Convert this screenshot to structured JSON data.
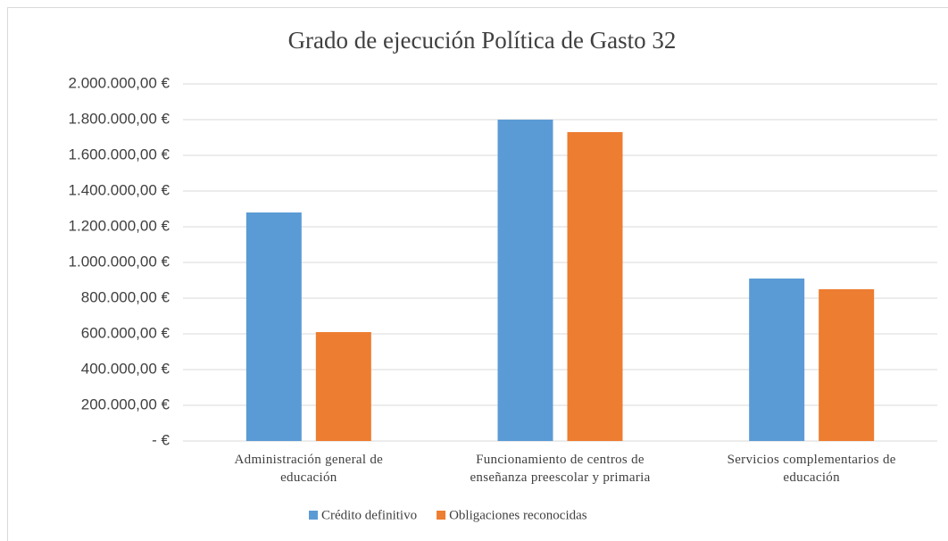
{
  "chart_data": {
    "type": "bar",
    "title": "Grado de ejecución Política de Gasto 32",
    "categories": [
      "Administración general de educación",
      "Funcionamiento de centros de enseñanza preescolar y primaria",
      "Servicios complementarios de educación"
    ],
    "series": [
      {
        "name": "Crédito definitivo",
        "color": "#5b9bd5",
        "values": [
          1280000,
          1800000,
          910000
        ]
      },
      {
        "name": "Obligaciones reconocidas",
        "color": "#ed7d31",
        "values": [
          610000,
          1730000,
          850000
        ]
      }
    ],
    "ylim": [
      0,
      2000000
    ],
    "yticks": [
      {
        "value": 0,
        "label": "-  €"
      },
      {
        "value": 200000,
        "label": "200.000,00 €"
      },
      {
        "value": 400000,
        "label": "400.000,00 €"
      },
      {
        "value": 600000,
        "label": "600.000,00 €"
      },
      {
        "value": 800000,
        "label": "800.000,00 €"
      },
      {
        "value": 1000000,
        "label": "1.000.000,00 €"
      },
      {
        "value": 1200000,
        "label": "1.200.000,00 €"
      },
      {
        "value": 1400000,
        "label": "1.400.000,00 €"
      },
      {
        "value": 1600000,
        "label": "1.600.000,00 €"
      },
      {
        "value": 1800000,
        "label": "1.800.000,00 €"
      },
      {
        "value": 2000000,
        "label": "2.000.000,00 €"
      }
    ],
    "grid": true,
    "legend": "bottom"
  }
}
